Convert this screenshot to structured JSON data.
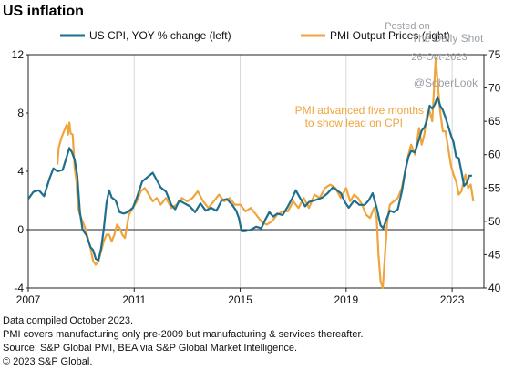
{
  "chart_data": {
    "type": "line",
    "title": "US inflation",
    "legend": {
      "placement": "top"
    },
    "x_ticks": [
      "2007",
      "2011",
      "2015",
      "2019",
      "2023"
    ],
    "x_range": [
      2007.0,
      2024.2
    ],
    "y_left": {
      "range": [
        -4,
        12
      ],
      "ticks": [
        "12",
        "8",
        "4",
        "0",
        "-4"
      ]
    },
    "y_right": {
      "range": [
        40,
        75
      ],
      "ticks": [
        "75",
        "70",
        "65",
        "60",
        "55",
        "50",
        "45",
        "40"
      ]
    },
    "grid": "vertical",
    "series": [
      {
        "name": "US CPI, YOY % change (left)",
        "axis": "left",
        "color": "#1e6f8c",
        "points": [
          [
            2007.0,
            2.1
          ],
          [
            2007.2,
            2.6
          ],
          [
            2007.4,
            2.7
          ],
          [
            2007.6,
            2.3
          ],
          [
            2007.8,
            3.5
          ],
          [
            2007.95,
            4.2
          ],
          [
            2008.1,
            4.0
          ],
          [
            2008.3,
            4.1
          ],
          [
            2008.45,
            5.0
          ],
          [
            2008.55,
            5.6
          ],
          [
            2008.65,
            5.3
          ],
          [
            2008.75,
            4.8
          ],
          [
            2008.85,
            3.7
          ],
          [
            2008.95,
            1.2
          ],
          [
            2009.05,
            0.0
          ],
          [
            2009.2,
            -0.4
          ],
          [
            2009.35,
            -1.2
          ],
          [
            2009.45,
            -1.4
          ],
          [
            2009.55,
            -2.0
          ],
          [
            2009.65,
            -2.1
          ],
          [
            2009.75,
            -1.3
          ],
          [
            2009.85,
            0.0
          ],
          [
            2009.95,
            1.8
          ],
          [
            2010.05,
            2.7
          ],
          [
            2010.15,
            2.2
          ],
          [
            2010.3,
            2.0
          ],
          [
            2010.45,
            1.2
          ],
          [
            2010.6,
            1.1
          ],
          [
            2010.75,
            1.2
          ],
          [
            2010.95,
            1.5
          ],
          [
            2011.1,
            2.2
          ],
          [
            2011.3,
            3.3
          ],
          [
            2011.5,
            3.6
          ],
          [
            2011.7,
            3.9
          ],
          [
            2011.85,
            3.4
          ],
          [
            2012.0,
            2.9
          ],
          [
            2012.2,
            2.6
          ],
          [
            2012.4,
            1.7
          ],
          [
            2012.55,
            1.4
          ],
          [
            2012.7,
            2.0
          ],
          [
            2012.9,
            1.8
          ],
          [
            2013.1,
            1.6
          ],
          [
            2013.3,
            1.2
          ],
          [
            2013.5,
            1.8
          ],
          [
            2013.7,
            1.3
          ],
          [
            2013.9,
            1.5
          ],
          [
            2014.1,
            1.3
          ],
          [
            2014.3,
            2.0
          ],
          [
            2014.5,
            2.1
          ],
          [
            2014.7,
            1.7
          ],
          [
            2014.85,
            1.3
          ],
          [
            2014.95,
            0.8
          ],
          [
            2015.05,
            -0.1
          ],
          [
            2015.2,
            -0.1
          ],
          [
            2015.4,
            0.0
          ],
          [
            2015.6,
            0.2
          ],
          [
            2015.8,
            0.1
          ],
          [
            2015.95,
            0.7
          ],
          [
            2016.1,
            1.2
          ],
          [
            2016.25,
            0.9
          ],
          [
            2016.4,
            1.1
          ],
          [
            2016.6,
            1.0
          ],
          [
            2016.8,
            1.6
          ],
          [
            2016.95,
            2.1
          ],
          [
            2017.1,
            2.7
          ],
          [
            2017.25,
            2.2
          ],
          [
            2017.45,
            1.6
          ],
          [
            2017.6,
            1.9
          ],
          [
            2017.8,
            2.0
          ],
          [
            2017.95,
            2.1
          ],
          [
            2018.1,
            2.2
          ],
          [
            2018.3,
            2.5
          ],
          [
            2018.5,
            2.9
          ],
          [
            2018.65,
            2.7
          ],
          [
            2018.8,
            2.5
          ],
          [
            2018.95,
            1.9
          ],
          [
            2019.1,
            1.5
          ],
          [
            2019.3,
            2.0
          ],
          [
            2019.5,
            1.7
          ],
          [
            2019.7,
            1.7
          ],
          [
            2019.85,
            2.0
          ],
          [
            2020.0,
            2.5
          ],
          [
            2020.15,
            1.5
          ],
          [
            2020.3,
            0.3
          ],
          [
            2020.4,
            0.1
          ],
          [
            2020.5,
            0.6
          ],
          [
            2020.65,
            1.3
          ],
          [
            2020.8,
            1.2
          ],
          [
            2020.95,
            1.4
          ],
          [
            2021.1,
            2.6
          ],
          [
            2021.25,
            4.2
          ],
          [
            2021.35,
            5.0
          ],
          [
            2021.45,
            5.4
          ],
          [
            2021.6,
            5.3
          ],
          [
            2021.75,
            6.2
          ],
          [
            2021.85,
            6.8
          ],
          [
            2021.95,
            7.0
          ],
          [
            2022.05,
            7.5
          ],
          [
            2022.15,
            8.5
          ],
          [
            2022.25,
            8.3
          ],
          [
            2022.35,
            8.6
          ],
          [
            2022.45,
            9.1
          ],
          [
            2022.55,
            8.5
          ],
          [
            2022.65,
            8.2
          ],
          [
            2022.75,
            7.7
          ],
          [
            2022.85,
            7.1
          ],
          [
            2022.95,
            6.5
          ],
          [
            2023.05,
            6.0
          ],
          [
            2023.15,
            5.0
          ],
          [
            2023.25,
            4.9
          ],
          [
            2023.35,
            4.0
          ],
          [
            2023.45,
            3.0
          ],
          [
            2023.55,
            3.2
          ],
          [
            2023.65,
            3.7
          ],
          [
            2023.75,
            3.7
          ]
        ]
      },
      {
        "name": "PMI Output Prices (right)",
        "axis": "right",
        "color": "#f0a43c",
        "points": [
          [
            2008.1,
            58.5
          ],
          [
            2008.15,
            61.0
          ],
          [
            2008.25,
            62.5
          ],
          [
            2008.35,
            63.5
          ],
          [
            2008.45,
            64.5
          ],
          [
            2008.5,
            63.0
          ],
          [
            2008.55,
            64.8
          ],
          [
            2008.6,
            63.2
          ],
          [
            2008.68,
            63.0
          ],
          [
            2008.75,
            58.0
          ],
          [
            2008.82,
            56.0
          ],
          [
            2008.88,
            52.0
          ],
          [
            2008.95,
            51.0
          ],
          [
            2009.05,
            50.0
          ],
          [
            2009.15,
            49.0
          ],
          [
            2009.25,
            47.5
          ],
          [
            2009.35,
            46.0
          ],
          [
            2009.45,
            44.0
          ],
          [
            2009.55,
            43.5
          ],
          [
            2009.65,
            44.0
          ],
          [
            2009.75,
            45.5
          ],
          [
            2009.85,
            47.0
          ],
          [
            2009.95,
            48.0
          ],
          [
            2010.05,
            48.0
          ],
          [
            2010.15,
            47.0
          ],
          [
            2010.25,
            48.0
          ],
          [
            2010.35,
            49.5
          ],
          [
            2010.45,
            49.0
          ],
          [
            2010.55,
            48.0
          ],
          [
            2010.65,
            47.5
          ],
          [
            2010.8,
            51.0
          ],
          [
            2010.95,
            52.0
          ],
          [
            2011.1,
            53.0
          ],
          [
            2011.25,
            54.5
          ],
          [
            2011.4,
            55.0
          ],
          [
            2011.55,
            54.0
          ],
          [
            2011.7,
            53.0
          ],
          [
            2011.85,
            53.5
          ],
          [
            2012.0,
            52.5
          ],
          [
            2012.2,
            53.5
          ],
          [
            2012.4,
            52.0
          ],
          [
            2012.6,
            52.5
          ],
          [
            2012.8,
            53.5
          ],
          [
            2013.0,
            53.0
          ],
          [
            2013.2,
            53.5
          ],
          [
            2013.4,
            54.5
          ],
          [
            2013.6,
            53.0
          ],
          [
            2013.8,
            52.0
          ],
          [
            2014.0,
            53.0
          ],
          [
            2014.2,
            54.0
          ],
          [
            2014.4,
            53.0
          ],
          [
            2014.6,
            53.5
          ],
          [
            2014.8,
            52.5
          ],
          [
            2015.0,
            52.5
          ],
          [
            2015.2,
            51.5
          ],
          [
            2015.4,
            52.0
          ],
          [
            2015.6,
            51.0
          ],
          [
            2015.8,
            50.0
          ],
          [
            2016.0,
            49.5
          ],
          [
            2016.2,
            50.0
          ],
          [
            2016.4,
            51.0
          ],
          [
            2016.6,
            51.5
          ],
          [
            2016.8,
            51.5
          ],
          [
            2017.0,
            53.0
          ],
          [
            2017.2,
            52.0
          ],
          [
            2017.4,
            53.5
          ],
          [
            2017.6,
            52.0
          ],
          [
            2017.8,
            54.0
          ],
          [
            2018.0,
            53.5
          ],
          [
            2018.2,
            55.0
          ],
          [
            2018.4,
            55.5
          ],
          [
            2018.6,
            55.0
          ],
          [
            2018.8,
            53.5
          ],
          [
            2019.0,
            55.0
          ],
          [
            2019.15,
            53.0
          ],
          [
            2019.3,
            54.0
          ],
          [
            2019.45,
            53.5
          ],
          [
            2019.6,
            52.5
          ],
          [
            2019.75,
            51.0
          ],
          [
            2019.9,
            50.5
          ],
          [
            2020.05,
            52.0
          ],
          [
            2020.15,
            50.5
          ],
          [
            2020.22,
            45.0
          ],
          [
            2020.3,
            41.0
          ],
          [
            2020.38,
            40.0
          ],
          [
            2020.45,
            44.0
          ],
          [
            2020.55,
            50.0
          ],
          [
            2020.65,
            52.5
          ],
          [
            2020.8,
            53.0
          ],
          [
            2020.95,
            53.5
          ],
          [
            2021.1,
            55.0
          ],
          [
            2021.25,
            58.0
          ],
          [
            2021.35,
            60.0
          ],
          [
            2021.45,
            61.5
          ],
          [
            2021.6,
            60.0
          ],
          [
            2021.75,
            64.0
          ],
          [
            2021.85,
            61.5
          ],
          [
            2021.95,
            63.0
          ],
          [
            2022.05,
            66.0
          ],
          [
            2022.15,
            66.5
          ],
          [
            2022.25,
            65.0
          ],
          [
            2022.32,
            70.0
          ],
          [
            2022.38,
            74.5
          ],
          [
            2022.45,
            71.0
          ],
          [
            2022.55,
            66.5
          ],
          [
            2022.65,
            63.5
          ],
          [
            2022.75,
            63.5
          ],
          [
            2022.85,
            61.0
          ],
          [
            2022.95,
            58.5
          ],
          [
            2023.05,
            57.0
          ],
          [
            2023.15,
            56.0
          ],
          [
            2023.25,
            54.0
          ],
          [
            2023.35,
            54.5
          ],
          [
            2023.5,
            57.0
          ],
          [
            2023.6,
            55.0
          ],
          [
            2023.7,
            55.5
          ],
          [
            2023.8,
            53.0
          ]
        ]
      }
    ],
    "annotation": "PMI advanced five months to show lead on CPI"
  },
  "annotation_lines": [
    "PMI advanced five months",
    "to show lead on CPI"
  ],
  "watermark": {
    "line1": "Posted on",
    "line2": "The Daily Shot",
    "line3": "26-Oct-2023",
    "handle": "@SoberLook"
  },
  "footnotes": [
    "Data compiled October 2023.",
    "PMI covers manufacturing only pre-2009 but manufacturing & services thereafter.",
    "Source: S&P Global PMI, BEA  via S&P Global Market Intelligence.",
    "© 2023 S&P Global."
  ]
}
